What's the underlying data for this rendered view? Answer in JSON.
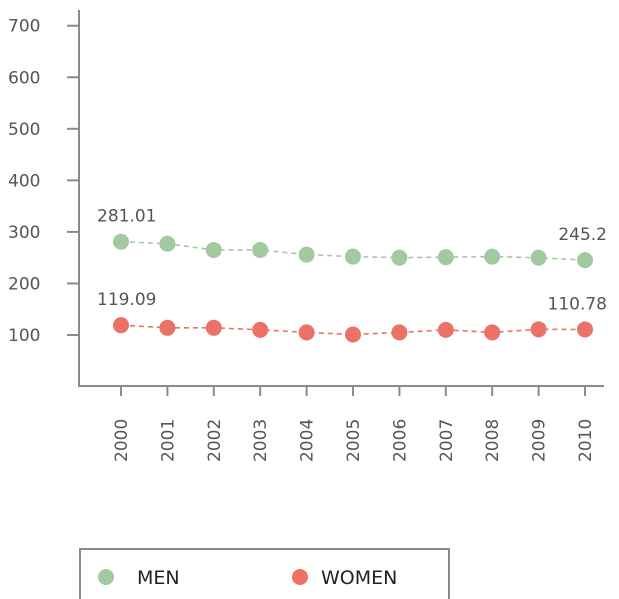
{
  "chart_data": {
    "type": "line",
    "title": "",
    "xlabel": "",
    "ylabel": "",
    "ylim": [
      0,
      700
    ],
    "yticks": [
      100,
      200,
      300,
      400,
      500,
      600,
      700
    ],
    "categories": [
      "2000",
      "2001",
      "2002",
      "2003",
      "2004",
      "2005",
      "2006",
      "2007",
      "2008",
      "2009",
      "2010"
    ],
    "series": [
      {
        "name": "MEN",
        "color": "#a3c9a0",
        "values": [
          281.01,
          277,
          265,
          265,
          256,
          252,
          250,
          251,
          252,
          250,
          245.2
        ],
        "labels": [
          "281.01",
          "",
          "",
          "",
          "",
          "",
          "",
          "",
          "",
          "",
          "245.2"
        ]
      },
      {
        "name": "WOMEN",
        "color": "#ec7166",
        "values": [
          119.09,
          114,
          114,
          110,
          105,
          101,
          105,
          110,
          105,
          111,
          110.78
        ],
        "labels": [
          "119.09",
          "",
          "",
          "",
          "",
          "",
          "",
          "",
          "",
          "",
          "110.78"
        ]
      }
    ],
    "grid": false,
    "legend": "bottom-left"
  }
}
